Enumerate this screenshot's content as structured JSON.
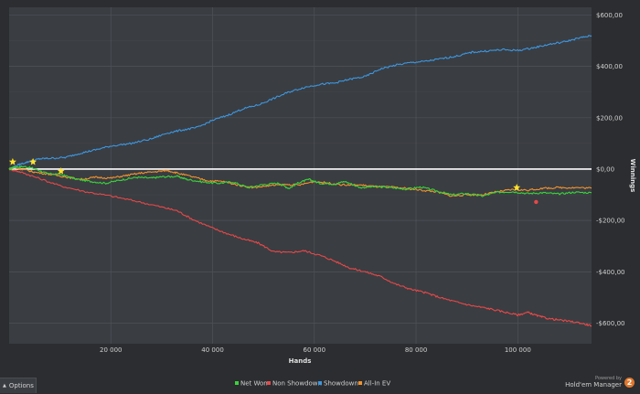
{
  "chart_data": {
    "type": "line",
    "xlabel": "Hands",
    "ylabel": "Winnings",
    "xlim": [
      0,
      114500
    ],
    "ylim": [
      -680,
      630
    ],
    "x_ticks": [
      20000,
      40000,
      60000,
      80000,
      100000
    ],
    "x_tick_labels": [
      "20 000",
      "40 000",
      "60 000",
      "80 000",
      "100 000"
    ],
    "y_ticks": [
      600,
      400,
      200,
      0,
      -200,
      -400,
      -600
    ],
    "y_tick_labels": [
      "$600,00",
      "$400,00",
      "$200,00",
      "$0,00",
      "-$200,00",
      "-$400,00",
      "-$600,00"
    ],
    "grid": true,
    "legend_position": "bottom",
    "series": [
      {
        "name": "Net Won",
        "color": "#3ad43a",
        "points": [
          [
            0,
            0
          ],
          [
            1000,
            8
          ],
          [
            3000,
            10
          ],
          [
            5000,
            2
          ],
          [
            7500,
            -18
          ],
          [
            10000,
            -20
          ],
          [
            13000,
            -38
          ],
          [
            16000,
            -48
          ],
          [
            19000,
            -55
          ],
          [
            22000,
            -42
          ],
          [
            25000,
            -32
          ],
          [
            28000,
            -35
          ],
          [
            30000,
            -30
          ],
          [
            33000,
            -28
          ],
          [
            35000,
            -40
          ],
          [
            38000,
            -50
          ],
          [
            41000,
            -55
          ],
          [
            44000,
            -50
          ],
          [
            47000,
            -72
          ],
          [
            50000,
            -60
          ],
          [
            53000,
            -55
          ],
          [
            55000,
            -75
          ],
          [
            57000,
            -52
          ],
          [
            59000,
            -40
          ],
          [
            61000,
            -55
          ],
          [
            64000,
            -58
          ],
          [
            66000,
            -48
          ],
          [
            69000,
            -72
          ],
          [
            72000,
            -68
          ],
          [
            75000,
            -72
          ],
          [
            78000,
            -78
          ],
          [
            81000,
            -70
          ],
          [
            84000,
            -85
          ],
          [
            87000,
            -100
          ],
          [
            90000,
            -95
          ],
          [
            93000,
            -105
          ],
          [
            96000,
            -90
          ],
          [
            99000,
            -88
          ],
          [
            102000,
            -95
          ],
          [
            105000,
            -92
          ],
          [
            108000,
            -97
          ],
          [
            111000,
            -90
          ],
          [
            114500,
            -92
          ]
        ]
      },
      {
        "name": "Non Showdown",
        "color": "#e84848",
        "points": [
          [
            0,
            0
          ],
          [
            2000,
            -10
          ],
          [
            5000,
            -30
          ],
          [
            10000,
            -65
          ],
          [
            15000,
            -88
          ],
          [
            20000,
            -105
          ],
          [
            25000,
            -125
          ],
          [
            30000,
            -148
          ],
          [
            33000,
            -162
          ],
          [
            36000,
            -195
          ],
          [
            40000,
            -230
          ],
          [
            43000,
            -252
          ],
          [
            46000,
            -272
          ],
          [
            49000,
            -288
          ],
          [
            52000,
            -322
          ],
          [
            55000,
            -325
          ],
          [
            58000,
            -318
          ],
          [
            61000,
            -335
          ],
          [
            64000,
            -358
          ],
          [
            67000,
            -385
          ],
          [
            70000,
            -400
          ],
          [
            73000,
            -418
          ],
          [
            76000,
            -448
          ],
          [
            79000,
            -468
          ],
          [
            82000,
            -482
          ],
          [
            85000,
            -502
          ],
          [
            88000,
            -518
          ],
          [
            91000,
            -532
          ],
          [
            94000,
            -542
          ],
          [
            97000,
            -555
          ],
          [
            100000,
            -568
          ],
          [
            102000,
            -558
          ],
          [
            104000,
            -572
          ],
          [
            106000,
            -582
          ],
          [
            109000,
            -590
          ],
          [
            112000,
            -598
          ],
          [
            114500,
            -610
          ]
        ]
      },
      {
        "name": "Showdown",
        "color": "#3c97e0",
        "points": [
          [
            0,
            0
          ],
          [
            2000,
            18
          ],
          [
            4000,
            30
          ],
          [
            6000,
            40
          ],
          [
            8000,
            42
          ],
          [
            11000,
            45
          ],
          [
            14000,
            62
          ],
          [
            17000,
            75
          ],
          [
            20000,
            90
          ],
          [
            24000,
            100
          ],
          [
            28000,
            118
          ],
          [
            31000,
            140
          ],
          [
            34000,
            152
          ],
          [
            37000,
            162
          ],
          [
            40000,
            190
          ],
          [
            43000,
            210
          ],
          [
            46000,
            235
          ],
          [
            49000,
            250
          ],
          [
            52000,
            275
          ],
          [
            55000,
            300
          ],
          [
            58000,
            318
          ],
          [
            61000,
            330
          ],
          [
            64000,
            335
          ],
          [
            67000,
            350
          ],
          [
            70000,
            360
          ],
          [
            73000,
            390
          ],
          [
            76000,
            405
          ],
          [
            79000,
            415
          ],
          [
            82000,
            420
          ],
          [
            85000,
            430
          ],
          [
            88000,
            440
          ],
          [
            91000,
            455
          ],
          [
            94000,
            460
          ],
          [
            97000,
            465
          ],
          [
            100000,
            462
          ],
          [
            103000,
            472
          ],
          [
            106000,
            485
          ],
          [
            109000,
            495
          ],
          [
            112000,
            510
          ],
          [
            114500,
            520
          ]
        ]
      },
      {
        "name": "All-In EV",
        "color": "#f0922e",
        "points": [
          [
            0,
            0
          ],
          [
            1000,
            5
          ],
          [
            3000,
            -2
          ],
          [
            5000,
            -12
          ],
          [
            8000,
            -20
          ],
          [
            11000,
            -30
          ],
          [
            14000,
            -40
          ],
          [
            17000,
            -32
          ],
          [
            20000,
            -35
          ],
          [
            23000,
            -25
          ],
          [
            26000,
            -15
          ],
          [
            29000,
            -10
          ],
          [
            31000,
            -5
          ],
          [
            33000,
            -15
          ],
          [
            36000,
            -30
          ],
          [
            39000,
            -45
          ],
          [
            42000,
            -48
          ],
          [
            45000,
            -62
          ],
          [
            48000,
            -72
          ],
          [
            51000,
            -65
          ],
          [
            54000,
            -60
          ],
          [
            57000,
            -62
          ],
          [
            60000,
            -48
          ],
          [
            63000,
            -55
          ],
          [
            66000,
            -62
          ],
          [
            69000,
            -62
          ],
          [
            72000,
            -68
          ],
          [
            75000,
            -70
          ],
          [
            78000,
            -75
          ],
          [
            81000,
            -82
          ],
          [
            84000,
            -88
          ],
          [
            87000,
            -105
          ],
          [
            90000,
            -100
          ],
          [
            93000,
            -100
          ],
          [
            96000,
            -88
          ],
          [
            99000,
            -80
          ],
          [
            102000,
            -82
          ],
          [
            105000,
            -75
          ],
          [
            108000,
            -72
          ],
          [
            111000,
            -72
          ],
          [
            114500,
            -74
          ]
        ]
      }
    ],
    "markers": [
      {
        "type": "star",
        "color": "#ffe22e",
        "x": 700,
        "y": 28
      },
      {
        "type": "star",
        "color": "#ffe22e",
        "x": 4700,
        "y": 28
      },
      {
        "type": "star",
        "color": "#ffe22e",
        "x": 10200,
        "y": -8
      },
      {
        "type": "star",
        "color": "#ffe22e",
        "x": 99800,
        "y": -72
      },
      {
        "type": "dot",
        "color": "#e84848",
        "x": 103600,
        "y": -128
      }
    ]
  },
  "ui": {
    "options_label": "Options",
    "powered_by": "Powered by",
    "product_name": "Hold'em Manager",
    "badge": "2"
  }
}
